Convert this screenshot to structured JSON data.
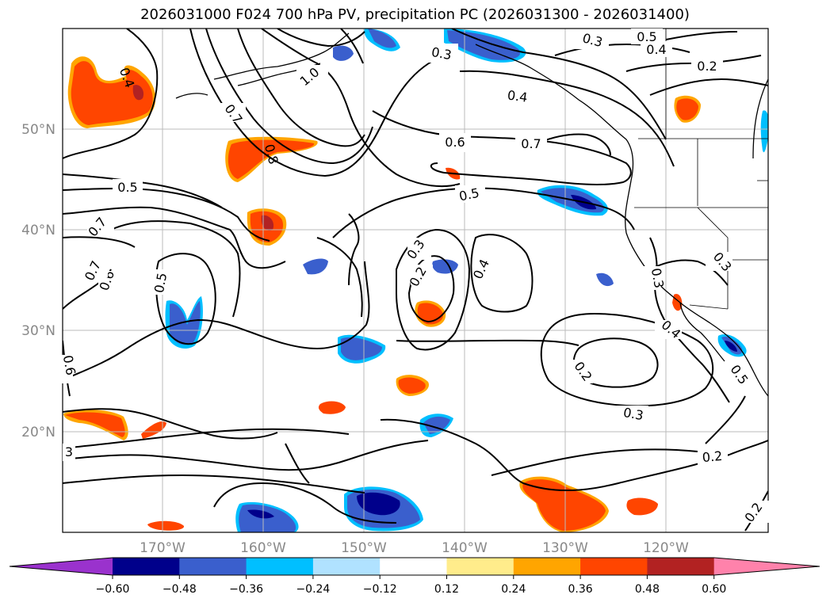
{
  "title": "2026031000 F024 700 hPa PV, precipitation PC (2026031300 - 2026031400)",
  "map": {
    "lat_labels": [
      "50°N",
      "40°N",
      "30°N",
      "20°N"
    ],
    "lon_labels": [
      "170°W",
      "160°W",
      "150°W",
      "140°W",
      "130°W",
      "120°W"
    ],
    "grid": true,
    "projection": "lat-lon"
  },
  "contour_labels": [
    {
      "text": "0.3"
    },
    {
      "text": "0.4"
    },
    {
      "text": "1.0"
    },
    {
      "text": "0.7"
    },
    {
      "text": "0.8"
    },
    {
      "text": "0.3"
    },
    {
      "text": "0.5"
    },
    {
      "text": "0.4"
    },
    {
      "text": "0.2"
    },
    {
      "text": "0.4"
    },
    {
      "text": "0.6"
    },
    {
      "text": "0.7"
    },
    {
      "text": "0.5"
    },
    {
      "text": "0.5"
    },
    {
      "text": "0.7"
    },
    {
      "text": "0.6"
    },
    {
      "text": "0.7"
    },
    {
      "text": "0.5"
    },
    {
      "text": "0.3"
    },
    {
      "text": "0.2"
    },
    {
      "text": "0.4"
    },
    {
      "text": "0.3"
    },
    {
      "text": "0.4"
    },
    {
      "text": "0.3"
    },
    {
      "text": "0.2"
    },
    {
      "text": "0.3"
    },
    {
      "text": "0.2"
    },
    {
      "text": "0.5"
    },
    {
      "text": "0.6"
    },
    {
      "text": "3"
    },
    {
      "text": "0.2"
    }
  ],
  "colorbar": {
    "ticks": [
      "−0.60",
      "−0.48",
      "−0.36",
      "−0.24",
      "−0.12",
      "0.12",
      "0.24",
      "0.36",
      "0.48",
      "0.60"
    ],
    "colors": [
      "#9a32cd",
      "#00008b",
      "#3a5fcd",
      "#00bfff",
      "#b0e2ff",
      "#ffffff",
      "#ffec8b",
      "#ffa500",
      "#ff4500",
      "#b22222",
      "#ff82ab"
    ]
  }
}
